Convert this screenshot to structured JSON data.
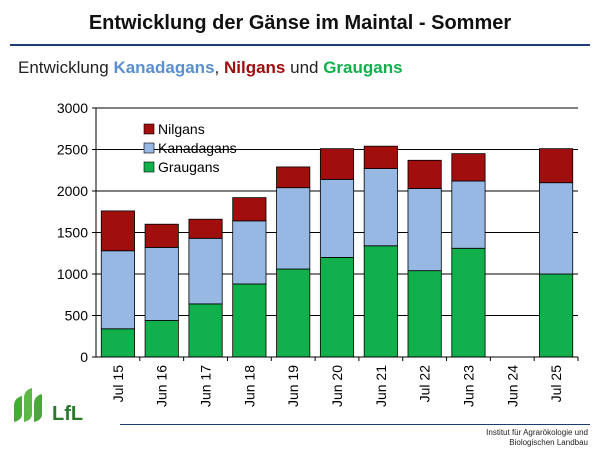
{
  "slide_title": "Entwicklung der Gänse im Maintal - Sommer",
  "subtitle": {
    "prefix": "Entwicklung ",
    "kanada": "Kanadagans",
    "sep1": ", ",
    "nil": "Nilgans",
    "sep2": " und ",
    "grau": "Graugans"
  },
  "colors": {
    "nilgans": "#a00e0e",
    "kanadagans": "#97b8e2",
    "graugans": "#12b04c",
    "subtitle_kanada": "#5b8fcf",
    "subtitle_nil": "#a00e0e",
    "subtitle_grau": "#12b04c"
  },
  "chart_data": {
    "type": "bar",
    "stacked": true,
    "categories": [
      "Jul 15",
      "Jun 16",
      "Jun 17",
      "Jun 18",
      "Jun 19",
      "Jun 20",
      "Jun 21",
      "Jul 22",
      "Jun 23",
      "Jun 24",
      "Jul 25"
    ],
    "series": [
      {
        "name": "Graugans",
        "values": [
          340,
          440,
          640,
          880,
          1060,
          1200,
          1340,
          1040,
          1310,
          0,
          1000
        ]
      },
      {
        "name": "Kanadagans",
        "values": [
          940,
          880,
          790,
          760,
          980,
          940,
          930,
          990,
          810,
          0,
          1100
        ]
      },
      {
        "name": "Nilgans",
        "values": [
          480,
          280,
          230,
          280,
          250,
          370,
          270,
          340,
          330,
          0,
          410
        ]
      }
    ],
    "legend_order": [
      "Nilgans",
      "Kanadagans",
      "Graugans"
    ],
    "legend_position": "top-left",
    "yticks": [
      0,
      500,
      1000,
      1500,
      2000,
      2500,
      3000
    ],
    "ylim": [
      0,
      3000
    ],
    "grid": true
  },
  "logo": {
    "text": "LfL"
  },
  "footer": {
    "line1": "Institut für Agrarökologie und",
    "line2": "Biologischen Landbau"
  }
}
